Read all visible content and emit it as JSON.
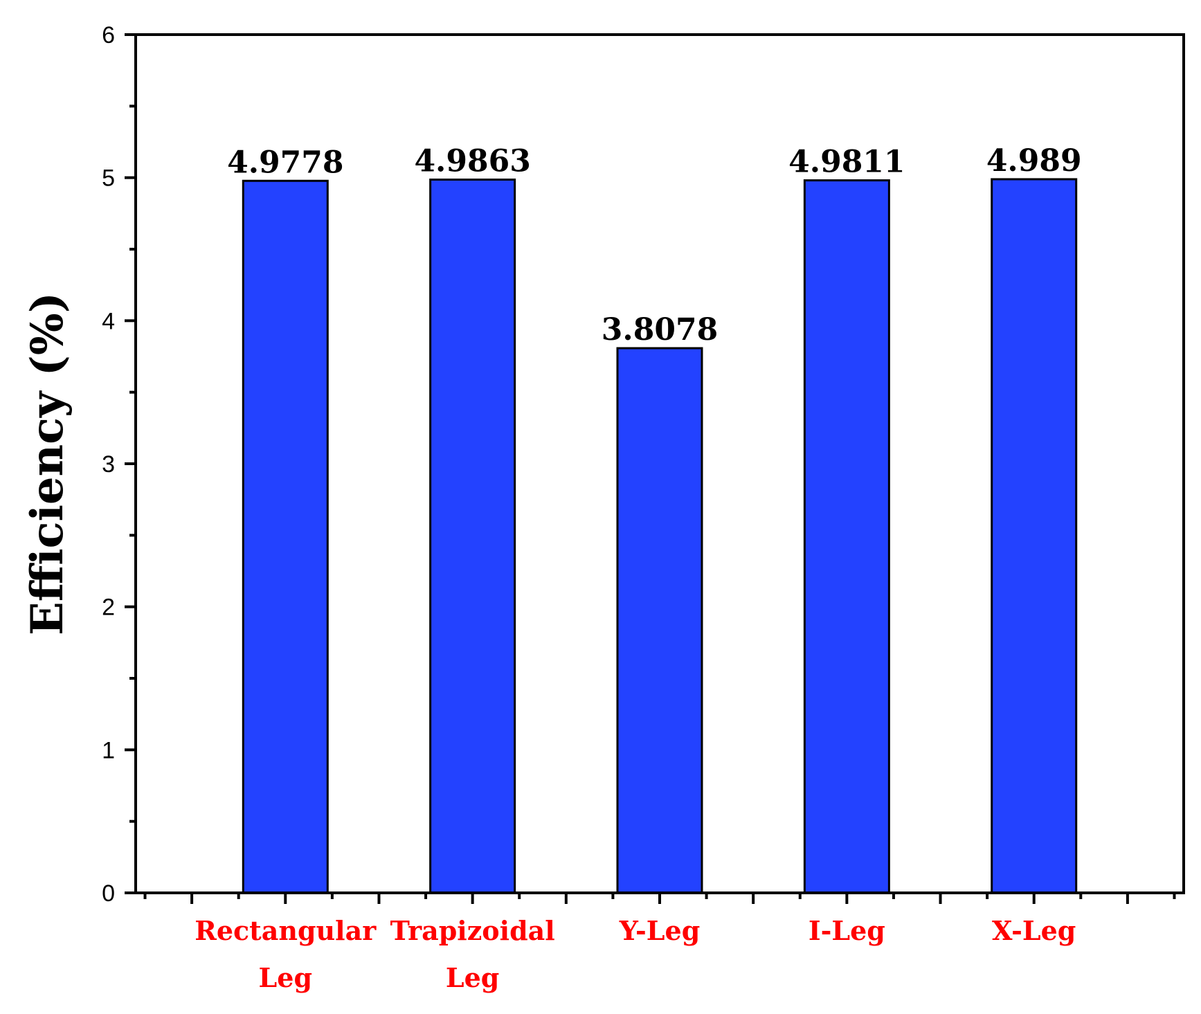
{
  "chart_data": {
    "type": "bar",
    "categories": [
      [
        "Rectangular",
        "Leg"
      ],
      [
        "Trapizoidal",
        "Leg"
      ],
      [
        "Y-Leg"
      ],
      [
        "I-Leg"
      ],
      [
        "X-Leg"
      ]
    ],
    "values": [
      4.9778,
      4.9863,
      3.8078,
      4.9811,
      4.989
    ],
    "value_labels": [
      "4.9778",
      "4.9863",
      "3.8078",
      "4.9811",
      "4.989"
    ],
    "ylabel": "Efficiency (%)",
    "xlabel": "",
    "ylim": [
      0,
      6
    ],
    "yticks": [
      0,
      1,
      2,
      3,
      4,
      5,
      6
    ],
    "grid": false,
    "colors": {
      "bar_fill": "#2342ff",
      "bar_stroke": "#000000",
      "category_label": "#ff0000",
      "axis": "#000000"
    }
  }
}
